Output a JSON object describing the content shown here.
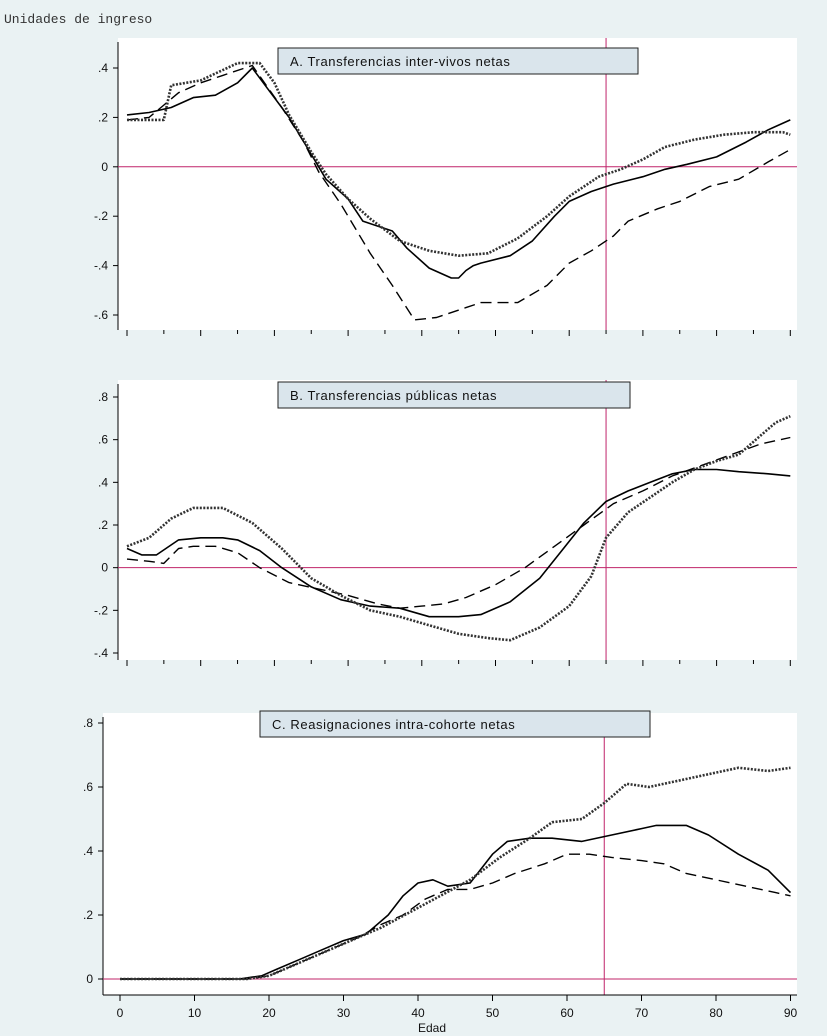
{
  "figure": {
    "y_unit_label": "Unidades de ingreso",
    "x_axis_label": "Edad",
    "x_ticks": [
      0,
      10,
      20,
      30,
      40,
      50,
      60,
      70,
      80,
      90
    ],
    "vertical_reference_x": 65,
    "horizontal_reference_y": 0,
    "colors": {
      "background": "#eaf2f3",
      "plot_background": "#ffffff",
      "reference_line": "#c0246a",
      "series": "#000000",
      "title_box": "#dae5ec"
    }
  },
  "chart_data": [
    {
      "type": "line",
      "title": "A. Transferencias inter-vivos netas",
      "xlim": [
        0,
        90
      ],
      "ylim": [
        -0.62,
        0.42
      ],
      "y_ticks": [
        ".4",
        ".2",
        "0",
        "-.2",
        "-.4",
        "-.6"
      ],
      "y_tick_values": [
        0.4,
        0.2,
        0,
        -0.2,
        -0.4,
        -0.6
      ],
      "series": [
        {
          "style": "solid",
          "points": [
            [
              0,
              0.21
            ],
            [
              3,
              0.22
            ],
            [
              6,
              0.24
            ],
            [
              9,
              0.28
            ],
            [
              12,
              0.29
            ],
            [
              15,
              0.34
            ],
            [
              17,
              0.4
            ],
            [
              19,
              0.32
            ],
            [
              22,
              0.2
            ],
            [
              25,
              0.05
            ],
            [
              27,
              -0.05
            ],
            [
              30,
              -0.13
            ],
            [
              32,
              -0.22
            ],
            [
              36,
              -0.26
            ],
            [
              38,
              -0.33
            ],
            [
              41,
              -0.41
            ],
            [
              44,
              -0.45
            ],
            [
              45,
              -0.45
            ],
            [
              46,
              -0.42
            ],
            [
              47,
              -0.4
            ],
            [
              48,
              -0.39
            ],
            [
              52,
              -0.36
            ],
            [
              55,
              -0.3
            ],
            [
              58,
              -0.2
            ],
            [
              60,
              -0.14
            ],
            [
              63,
              -0.1
            ],
            [
              66,
              -0.07
            ],
            [
              70,
              -0.04
            ],
            [
              73,
              -0.01
            ],
            [
              76,
              0.01
            ],
            [
              80,
              0.04
            ],
            [
              84,
              0.1
            ],
            [
              87,
              0.15
            ],
            [
              90,
              0.19
            ]
          ]
        },
        {
          "style": "dashed",
          "points": [
            [
              0,
              0.19
            ],
            [
              3,
              0.2
            ],
            [
              5,
              0.25
            ],
            [
              7,
              0.3
            ],
            [
              10,
              0.34
            ],
            [
              13,
              0.37
            ],
            [
              17,
              0.41
            ],
            [
              21,
              0.24
            ],
            [
              24,
              0.1
            ],
            [
              26,
              -0.02
            ],
            [
              29,
              -0.15
            ],
            [
              31,
              -0.25
            ],
            [
              33,
              -0.35
            ],
            [
              36,
              -0.48
            ],
            [
              39,
              -0.62
            ],
            [
              42,
              -0.61
            ],
            [
              46,
              -0.57
            ],
            [
              48,
              -0.55
            ],
            [
              53,
              -0.55
            ],
            [
              57,
              -0.48
            ],
            [
              60,
              -0.39
            ],
            [
              63,
              -0.34
            ],
            [
              66,
              -0.28
            ],
            [
              68,
              -0.22
            ],
            [
              72,
              -0.17
            ],
            [
              75,
              -0.14
            ],
            [
              79,
              -0.08
            ],
            [
              83,
              -0.05
            ],
            [
              87,
              0.02
            ],
            [
              90,
              0.07
            ]
          ]
        },
        {
          "style": "dotted",
          "points": [
            [
              0,
              0.19
            ],
            [
              5,
              0.19
            ],
            [
              6,
              0.33
            ],
            [
              10,
              0.35
            ],
            [
              15,
              0.42
            ],
            [
              18,
              0.42
            ],
            [
              20,
              0.34
            ],
            [
              22,
              0.21
            ],
            [
              25,
              0.06
            ],
            [
              27,
              -0.03
            ],
            [
              30,
              -0.13
            ],
            [
              33,
              -0.21
            ],
            [
              37,
              -0.3
            ],
            [
              41,
              -0.34
            ],
            [
              45,
              -0.36
            ],
            [
              49,
              -0.35
            ],
            [
              53,
              -0.29
            ],
            [
              57,
              -0.2
            ],
            [
              60,
              -0.12
            ],
            [
              64,
              -0.04
            ],
            [
              67,
              -0.01
            ],
            [
              70,
              0.03
            ],
            [
              73,
              0.08
            ],
            [
              77,
              0.11
            ],
            [
              81,
              0.13
            ],
            [
              85,
              0.14
            ],
            [
              89,
              0.14
            ],
            [
              90,
              0.13
            ]
          ]
        }
      ]
    },
    {
      "type": "line",
      "title": "B. Transferencias públicas netas",
      "xlim": [
        0,
        90
      ],
      "ylim": [
        -0.42,
        0.8
      ],
      "y_ticks": [
        ".8",
        ".6",
        ".4",
        ".2",
        "0",
        "-.2",
        "-.4"
      ],
      "y_tick_values": [
        0.8,
        0.6,
        0.4,
        0.2,
        0,
        -0.2,
        -0.4
      ],
      "series": [
        {
          "style": "solid",
          "points": [
            [
              0,
              0.09
            ],
            [
              2,
              0.06
            ],
            [
              4,
              0.06
            ],
            [
              7,
              0.13
            ],
            [
              10,
              0.14
            ],
            [
              13,
              0.14
            ],
            [
              15,
              0.13
            ],
            [
              18,
              0.08
            ],
            [
              21,
              0.0
            ],
            [
              25,
              -0.09
            ],
            [
              29,
              -0.15
            ],
            [
              33,
              -0.18
            ],
            [
              37,
              -0.19
            ],
            [
              41,
              -0.23
            ],
            [
              45,
              -0.23
            ],
            [
              48,
              -0.22
            ],
            [
              52,
              -0.16
            ],
            [
              56,
              -0.05
            ],
            [
              59,
              0.08
            ],
            [
              62,
              0.21
            ],
            [
              65,
              0.31
            ],
            [
              68,
              0.36
            ],
            [
              71,
              0.4
            ],
            [
              74,
              0.44
            ],
            [
              77,
              0.46
            ],
            [
              80,
              0.46
            ],
            [
              83,
              0.45
            ],
            [
              87,
              0.44
            ],
            [
              90,
              0.43
            ]
          ]
        },
        {
          "style": "dashed",
          "points": [
            [
              0,
              0.04
            ],
            [
              3,
              0.03
            ],
            [
              5,
              0.02
            ],
            [
              7,
              0.09
            ],
            [
              9,
              0.1
            ],
            [
              12,
              0.1
            ],
            [
              15,
              0.07
            ],
            [
              18,
              0.0
            ],
            [
              22,
              -0.07
            ],
            [
              26,
              -0.1
            ],
            [
              30,
              -0.13
            ],
            [
              34,
              -0.17
            ],
            [
              37,
              -0.19
            ],
            [
              40,
              -0.18
            ],
            [
              43,
              -0.17
            ],
            [
              46,
              -0.14
            ],
            [
              50,
              -0.08
            ],
            [
              54,
              0.0
            ],
            [
              58,
              0.1
            ],
            [
              62,
              0.2
            ],
            [
              66,
              0.3
            ],
            [
              70,
              0.36
            ],
            [
              74,
              0.43
            ],
            [
              78,
              0.48
            ],
            [
              82,
              0.53
            ],
            [
              86,
              0.58
            ],
            [
              90,
              0.61
            ]
          ]
        },
        {
          "style": "dotted",
          "points": [
            [
              0,
              0.1
            ],
            [
              3,
              0.14
            ],
            [
              6,
              0.23
            ],
            [
              9,
              0.28
            ],
            [
              13,
              0.28
            ],
            [
              17,
              0.21
            ],
            [
              21,
              0.09
            ],
            [
              25,
              -0.05
            ],
            [
              29,
              -0.13
            ],
            [
              33,
              -0.2
            ],
            [
              37,
              -0.23
            ],
            [
              41,
              -0.27
            ],
            [
              45,
              -0.31
            ],
            [
              49,
              -0.33
            ],
            [
              52,
              -0.34
            ],
            [
              56,
              -0.28
            ],
            [
              60,
              -0.18
            ],
            [
              63,
              -0.04
            ],
            [
              65,
              0.14
            ],
            [
              68,
              0.26
            ],
            [
              71,
              0.33
            ],
            [
              74,
              0.4
            ],
            [
              77,
              0.46
            ],
            [
              80,
              0.5
            ],
            [
              83,
              0.53
            ],
            [
              86,
              0.62
            ],
            [
              88,
              0.68
            ],
            [
              90,
              0.71
            ]
          ]
        }
      ]
    },
    {
      "type": "line",
      "title": "C. Reasignaciones intra-cohorte netas",
      "xlim": [
        0,
        90
      ],
      "ylim": [
        -0.02,
        0.8
      ],
      "y_ticks": [
        ".8",
        ".6",
        ".4",
        ".2",
        "0"
      ],
      "y_tick_values": [
        0.8,
        0.6,
        0.4,
        0.2,
        0
      ],
      "series": [
        {
          "style": "solid",
          "points": [
            [
              0,
              0
            ],
            [
              16,
              0
            ],
            [
              19,
              0.01
            ],
            [
              21,
              0.03
            ],
            [
              24,
              0.06
            ],
            [
              27,
              0.09
            ],
            [
              30,
              0.12
            ],
            [
              33,
              0.14
            ],
            [
              36,
              0.2
            ],
            [
              38,
              0.26
            ],
            [
              40,
              0.3
            ],
            [
              42,
              0.31
            ],
            [
              44,
              0.29
            ],
            [
              47,
              0.3
            ],
            [
              50,
              0.39
            ],
            [
              52,
              0.43
            ],
            [
              55,
              0.44
            ],
            [
              58,
              0.44
            ],
            [
              62,
              0.43
            ],
            [
              66,
              0.45
            ],
            [
              70,
              0.47
            ],
            [
              72,
              0.48
            ],
            [
              76,
              0.48
            ],
            [
              79,
              0.45
            ],
            [
              83,
              0.39
            ],
            [
              87,
              0.34
            ],
            [
              90,
              0.27
            ]
          ]
        },
        {
          "style": "dashed",
          "points": [
            [
              0,
              0
            ],
            [
              17,
              0
            ],
            [
              20,
              0.01
            ],
            [
              23,
              0.04
            ],
            [
              26,
              0.07
            ],
            [
              29,
              0.1
            ],
            [
              32,
              0.13
            ],
            [
              35,
              0.17
            ],
            [
              38,
              0.2
            ],
            [
              41,
              0.25
            ],
            [
              44,
              0.28
            ],
            [
              47,
              0.28
            ],
            [
              50,
              0.3
            ],
            [
              53,
              0.33
            ],
            [
              57,
              0.36
            ],
            [
              60,
              0.39
            ],
            [
              63,
              0.39
            ],
            [
              66,
              0.38
            ],
            [
              70,
              0.37
            ],
            [
              73,
              0.36
            ],
            [
              76,
              0.33
            ],
            [
              80,
              0.31
            ],
            [
              84,
              0.29
            ],
            [
              88,
              0.27
            ],
            [
              90,
              0.26
            ]
          ]
        },
        {
          "style": "dotted",
          "points": [
            [
              0,
              0
            ],
            [
              17,
              0
            ],
            [
              20,
              0.01
            ],
            [
              23,
              0.04
            ],
            [
              27,
              0.08
            ],
            [
              31,
              0.12
            ],
            [
              35,
              0.16
            ],
            [
              39,
              0.21
            ],
            [
              43,
              0.26
            ],
            [
              47,
              0.31
            ],
            [
              51,
              0.38
            ],
            [
              55,
              0.44
            ],
            [
              58,
              0.49
            ],
            [
              62,
              0.5
            ],
            [
              65,
              0.55
            ],
            [
              68,
              0.61
            ],
            [
              71,
              0.6
            ],
            [
              75,
              0.62
            ],
            [
              79,
              0.64
            ],
            [
              83,
              0.66
            ],
            [
              87,
              0.65
            ],
            [
              90,
              0.66
            ]
          ]
        }
      ]
    }
  ]
}
